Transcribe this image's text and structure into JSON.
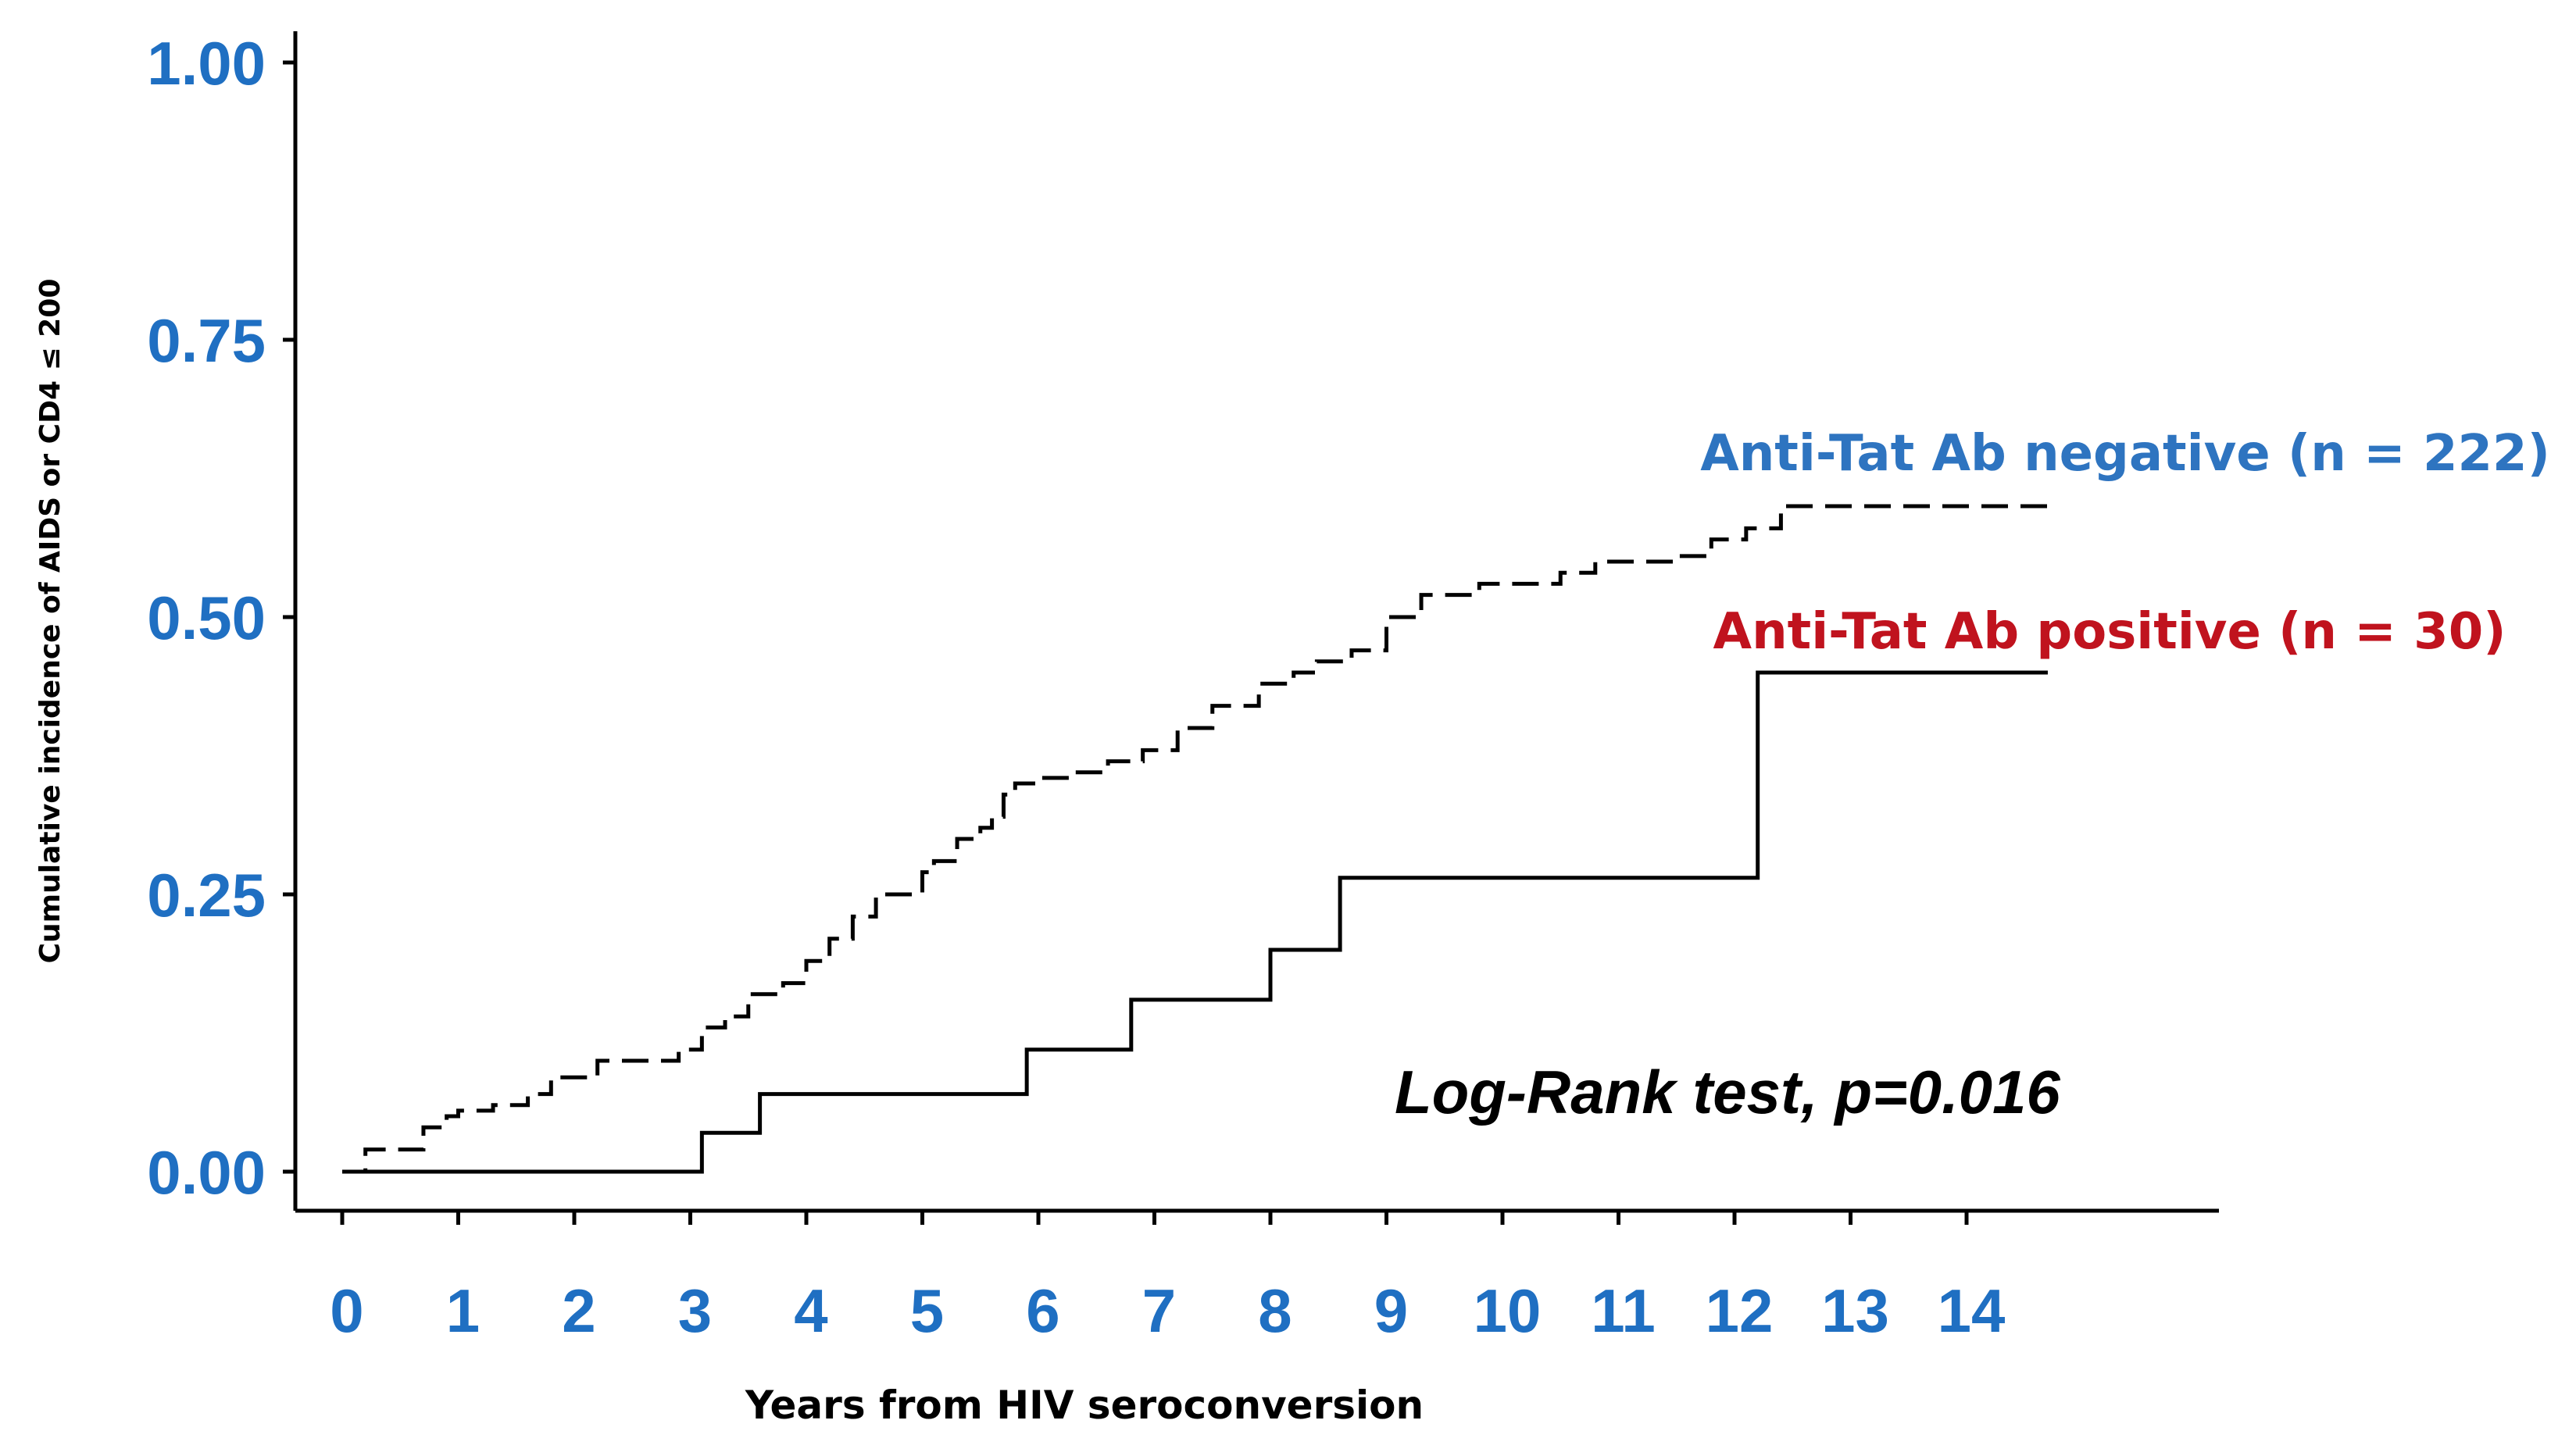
{
  "chart_data": {
    "type": "line",
    "title": "",
    "xlabel": "Years from HIV seroconversion",
    "ylabel": "Cumulative incidence of AIDS or CD4 ≤ 200",
    "xlim": [
      -0.4,
      16.3
    ],
    "ylim": [
      -0.04,
      1.04
    ],
    "x_ticks": [
      0,
      1,
      2,
      3,
      4,
      5,
      6,
      7,
      8,
      9,
      10,
      11,
      12,
      13,
      14
    ],
    "x_tick_labels": [
      "0",
      "1",
      "2",
      "3",
      "4",
      "5",
      "6",
      "7",
      "8",
      "9",
      "10",
      "11",
      "12",
      "13",
      "14"
    ],
    "y_ticks": [
      0,
      0.25,
      0.5,
      0.75,
      1.0
    ],
    "y_tick_labels": [
      "0.00",
      "0.25",
      "0.50",
      "0.75",
      "1.00"
    ],
    "tick_label_color": "#1f6fc2",
    "grid": false,
    "step": true,
    "series": [
      {
        "name": "Anti-Tat Ab negative (n = 222)",
        "line_style": "dashed",
        "label_color": "#2e74c0",
        "x": [
          0.0,
          0.2,
          0.3,
          0.7,
          0.9,
          1.0,
          1.3,
          1.6,
          1.8,
          2.2,
          2.6,
          2.9,
          3.1,
          3.3,
          3.5,
          3.8,
          4.0,
          4.2,
          4.4,
          4.6,
          4.8,
          5.0,
          5.1,
          5.3,
          5.5,
          5.6,
          5.7,
          5.8,
          6.0,
          6.3,
          6.6,
          6.9,
          7.2,
          7.5,
          7.9,
          8.2,
          8.4,
          8.7,
          9.0,
          9.3,
          9.8,
          10.5,
          10.8,
          11.5,
          11.8,
          12.1,
          12.4,
          14.7
        ],
        "y": [
          0.0,
          0.02,
          0.02,
          0.04,
          0.05,
          0.055,
          0.06,
          0.07,
          0.085,
          0.1,
          0.1,
          0.11,
          0.13,
          0.14,
          0.16,
          0.17,
          0.19,
          0.21,
          0.23,
          0.25,
          0.25,
          0.27,
          0.28,
          0.3,
          0.31,
          0.32,
          0.34,
          0.35,
          0.355,
          0.36,
          0.37,
          0.38,
          0.4,
          0.42,
          0.44,
          0.45,
          0.46,
          0.47,
          0.5,
          0.52,
          0.53,
          0.54,
          0.55,
          0.555,
          0.57,
          0.58,
          0.6,
          0.6
        ]
      },
      {
        "name": "Anti-Tat Ab positive (n = 30)",
        "line_style": "solid",
        "label_color": "#c0131e",
        "x": [
          0.0,
          3.1,
          3.6,
          5.9,
          6.8,
          8.0,
          8.6,
          12.2,
          14.7
        ],
        "y": [
          0.0,
          0.035,
          0.07,
          0.11,
          0.155,
          0.2,
          0.265,
          0.45,
          0.45
        ]
      }
    ],
    "annotations": [
      {
        "text": "Log-Rank test, p=0.016",
        "x": 8.9,
        "y": 0.06
      }
    ]
  }
}
